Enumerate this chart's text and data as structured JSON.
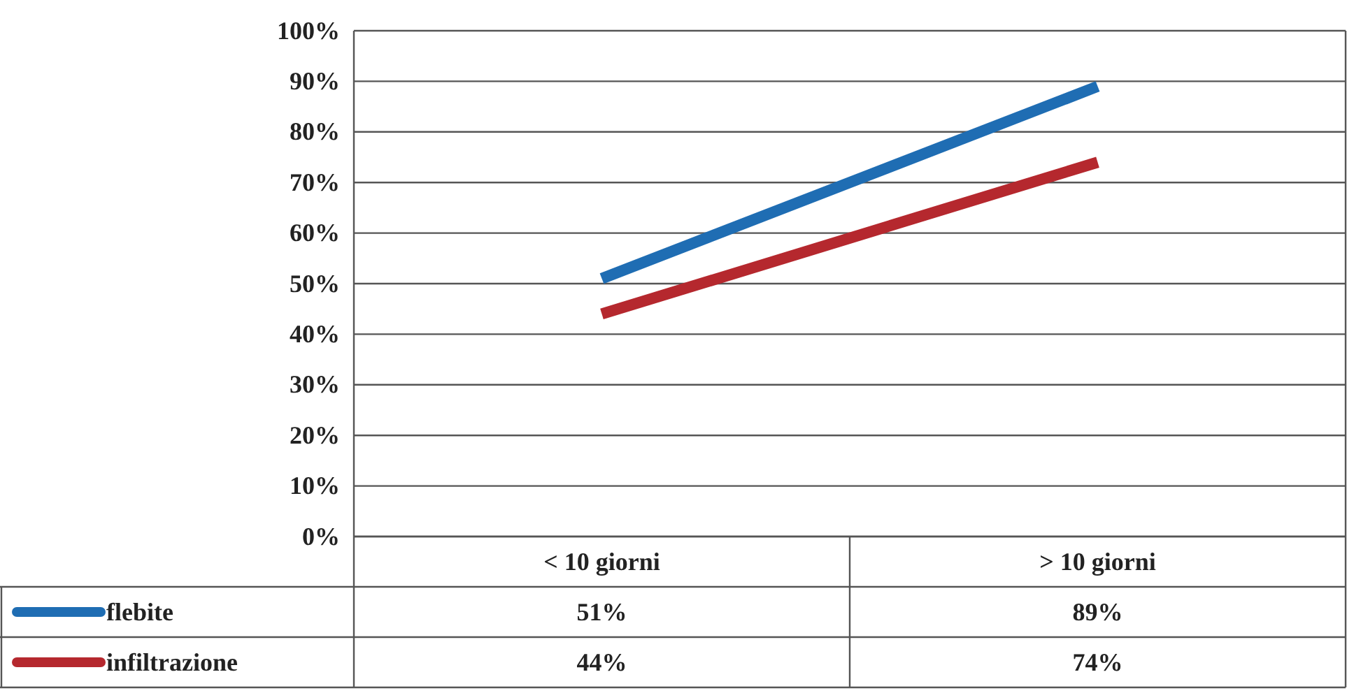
{
  "chart_data": {
    "type": "line",
    "categories": [
      "< 10 giorni",
      "> 10 giorni"
    ],
    "series": [
      {
        "name": "flebite",
        "color": "#1f6db3",
        "values": [
          51,
          89
        ],
        "value_labels": [
          "51%",
          "89%"
        ]
      },
      {
        "name": "infiltrazione",
        "color": "#b5282e",
        "values": [
          44,
          74
        ],
        "value_labels": [
          "44%",
          "74%"
        ]
      }
    ],
    "ylim": [
      0,
      100
    ],
    "yticks": [
      {
        "value": 0,
        "label": "0%"
      },
      {
        "value": 10,
        "label": "10%"
      },
      {
        "value": 20,
        "label": "20%"
      },
      {
        "value": 30,
        "label": "30%"
      },
      {
        "value": 40,
        "label": "40%"
      },
      {
        "value": 50,
        "label": "50%"
      },
      {
        "value": 60,
        "label": "60%"
      },
      {
        "value": 70,
        "label": "70%"
      },
      {
        "value": 80,
        "label": "80%"
      },
      {
        "value": 90,
        "label": "90%"
      },
      {
        "value": 100,
        "label": "100%"
      }
    ],
    "grid": "y",
    "legend": "bottom",
    "marker": "none",
    "line_style": "solid"
  }
}
